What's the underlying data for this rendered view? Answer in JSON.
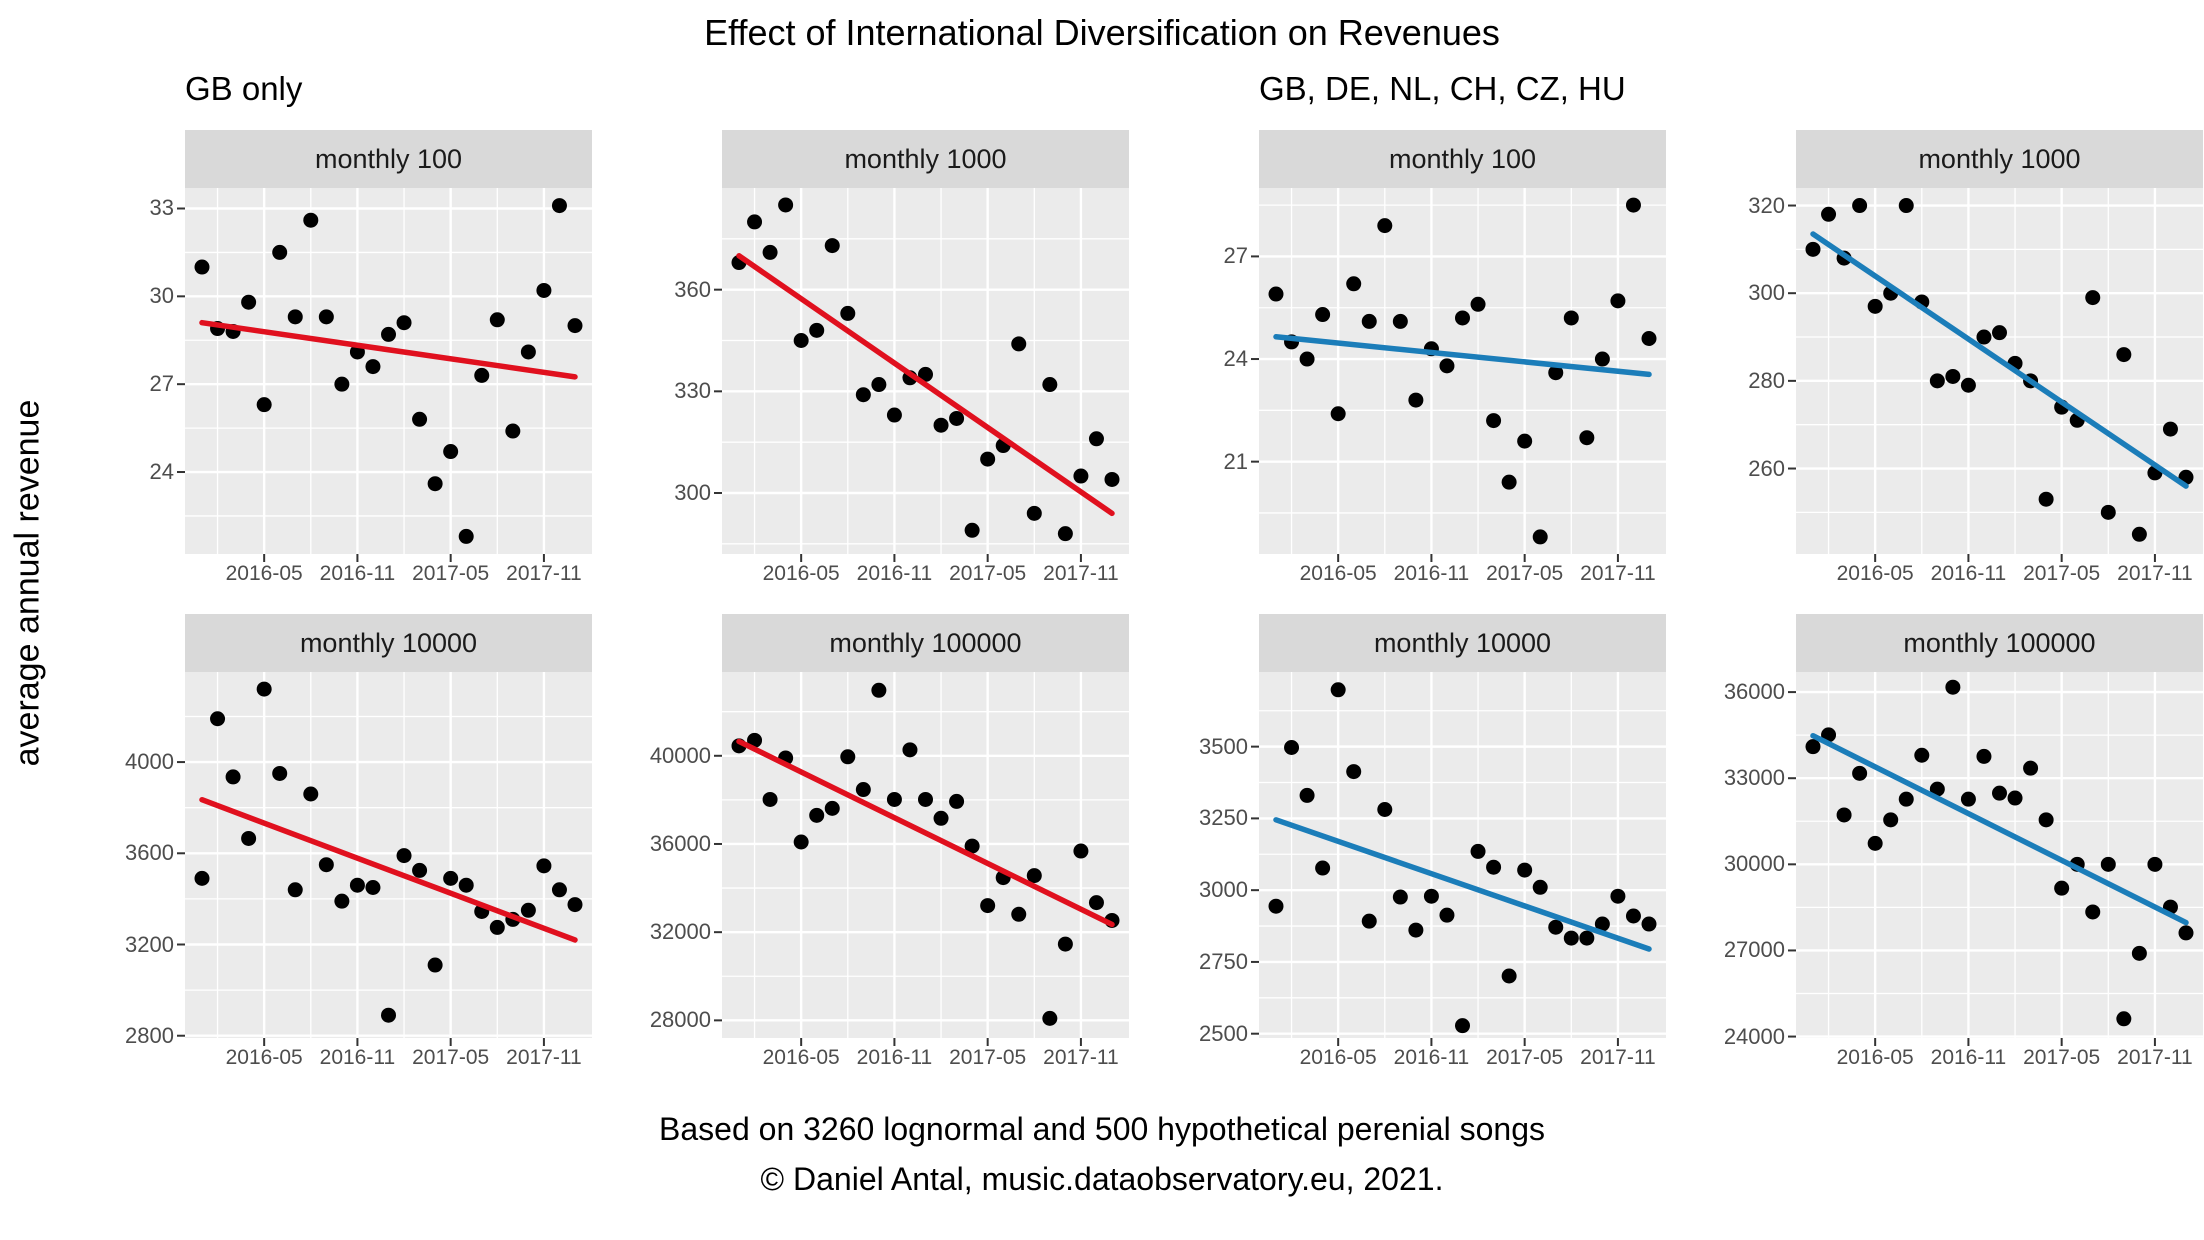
{
  "title": "Effect of International Diversification on Revenues",
  "ylabel": "average annual revenue",
  "captions": [
    "Based on 3260 lognormal and 500 hypothetical perenial songs",
    "© Daniel Antal, music.dataobservatory.eu, 2021."
  ],
  "colors": {
    "gb_trend": "#E0101E",
    "intl_trend": "#1B7DB9",
    "point": "#000000",
    "panel_bg": "#EBEBEB",
    "strip_bg": "#D9D9D9",
    "grid": "#FFFFFF",
    "tick_text": "#4D4D4D",
    "tick_mark": "#333333"
  },
  "chart_data": {
    "type": "scatter",
    "title": "Effect of International Diversification on Revenues",
    "ylabel": "average annual revenue",
    "grid": "on",
    "x_months": [
      "2016-01",
      "2016-02",
      "2016-03",
      "2016-04",
      "2016-05",
      "2016-06",
      "2016-07",
      "2016-08",
      "2016-09",
      "2016-10",
      "2016-11",
      "2016-12",
      "2017-01",
      "2017-02",
      "2017-03",
      "2017-04",
      "2017-05",
      "2017-06",
      "2017-07",
      "2017-08",
      "2017-09",
      "2017-10",
      "2017-11",
      "2017-12",
      "2018-01"
    ],
    "x_axis_tick_labels": [
      "2016-05",
      "2016-11",
      "2017-05",
      "2017-11"
    ],
    "x_axis_tick_month_index": [
      4,
      10,
      16,
      22
    ],
    "x_minor_month_index": [
      1,
      7,
      13,
      19
    ],
    "groups": [
      {
        "label": "GB only",
        "color": "#E0101E",
        "panels": [
          {
            "facet": "monthly 100",
            "y_ticks": [
              24,
              27,
              30,
              33
            ],
            "y_domain": [
              21.2,
              33.7
            ],
            "values": [
              31.0,
              28.9,
              28.8,
              29.8,
              26.3,
              31.5,
              29.3,
              32.6,
              29.3,
              27.0,
              28.1,
              27.6,
              28.7,
              29.1,
              25.8,
              23.6,
              24.7,
              21.8,
              27.3,
              29.2,
              25.4,
              28.1,
              30.2,
              33.1,
              29.0
            ],
            "trend": [
              29.1,
              27.25
            ]
          },
          {
            "facet": "monthly 1000",
            "y_ticks": [
              300,
              330,
              360
            ],
            "y_domain": [
              282,
              390
            ],
            "values": [
              368,
              380,
              371,
              385,
              345,
              348,
              373,
              353,
              329,
              332,
              323,
              334,
              335,
              320,
              322,
              289,
              310,
              314,
              344,
              294,
              332,
              288,
              305,
              316,
              304
            ],
            "trend": [
              370,
              294
            ]
          },
          {
            "facet": "monthly 10000",
            "y_ticks": [
              2800,
              3200,
              3600,
              4000
            ],
            "y_domain": [
              2790,
              4395
            ],
            "values": [
              3490,
              4190,
              3935,
              3665,
              4320,
              3950,
              3440,
              3860,
              3550,
              3390,
              3460,
              3450,
              2890,
              3590,
              3525,
              3110,
              3490,
              3460,
              3345,
              3275,
              3310,
              3350,
              3545,
              3440,
              3375
            ],
            "trend": [
              3835,
              3220
            ]
          },
          {
            "facet": "monthly 100000",
            "y_ticks": [
              28000,
              32000,
              36000,
              40000
            ],
            "y_domain": [
              27200,
              43800
            ],
            "values": [
              40450,
              40700,
              38020,
              39900,
              36090,
              37300,
              37615,
              39955,
              38470,
              42970,
              38020,
              40270,
              38020,
              37165,
              37930,
              35905,
              33205,
              34475,
              32810,
              34565,
              28090,
              31460,
              35680,
              33340,
              32530
            ],
            "trend": [
              40650,
              32350
            ]
          }
        ]
      },
      {
        "label": "GB, DE, NL, CH, CZ, HU",
        "color": "#1B7DB9",
        "panels": [
          {
            "facet": "monthly 100",
            "y_ticks": [
              21,
              24,
              27
            ],
            "y_domain": [
              18.3,
              29.0
            ],
            "values": [
              25.9,
              24.5,
              24.0,
              25.3,
              22.4,
              26.2,
              25.1,
              27.9,
              25.1,
              22.8,
              24.3,
              23.8,
              25.2,
              25.6,
              22.2,
              20.4,
              21.6,
              18.8,
              23.6,
              25.2,
              21.7,
              24.0,
              25.7,
              28.5,
              24.6
            ],
            "trend": [
              24.65,
              23.55
            ]
          },
          {
            "facet": "monthly 1000",
            "y_ticks": [
              260,
              280,
              300,
              320
            ],
            "y_domain": [
              240.5,
              324
            ],
            "values": [
              310,
              318,
              308,
              320,
              297,
              300,
              320,
              298,
              280,
              281,
              279,
              290,
              291,
              284,
              280,
              253,
              274,
              271,
              299,
              250,
              286,
              245,
              259,
              269,
              258
            ],
            "trend": [
              313.5,
              256
            ]
          },
          {
            "facet": "monthly 10000",
            "y_ticks": [
              2500,
              2750,
              3000,
              3250,
              3500
            ],
            "y_domain": [
              2485,
              3760
            ],
            "values": [
              2944,
              3497,
              3330,
              3077,
              3698,
              3413,
              2892,
              3281,
              2976,
              2861,
              2979,
              2913,
              2528,
              3135,
              3080,
              2701,
              3070,
              3010,
              2871,
              2833,
              2833,
              2882,
              2979,
              2910,
              2882
            ],
            "trend": [
              3245,
              2795
            ]
          },
          {
            "facet": "monthly 100000",
            "y_ticks": [
              24000,
              27000,
              30000,
              33000,
              36000
            ],
            "y_domain": [
              23950,
              36700
            ],
            "values": [
              34100,
              34510,
              31720,
              33170,
              30730,
              31550,
              32270,
              33800,
              32620,
              36170,
              32270,
              33760,
              32480,
              32310,
              33350,
              31550,
              29170,
              30000,
              28340,
              30000,
              24620,
              26900,
              30000,
              28510,
              27610
            ],
            "trend": [
              34480,
              27970
            ]
          }
        ]
      }
    ]
  }
}
